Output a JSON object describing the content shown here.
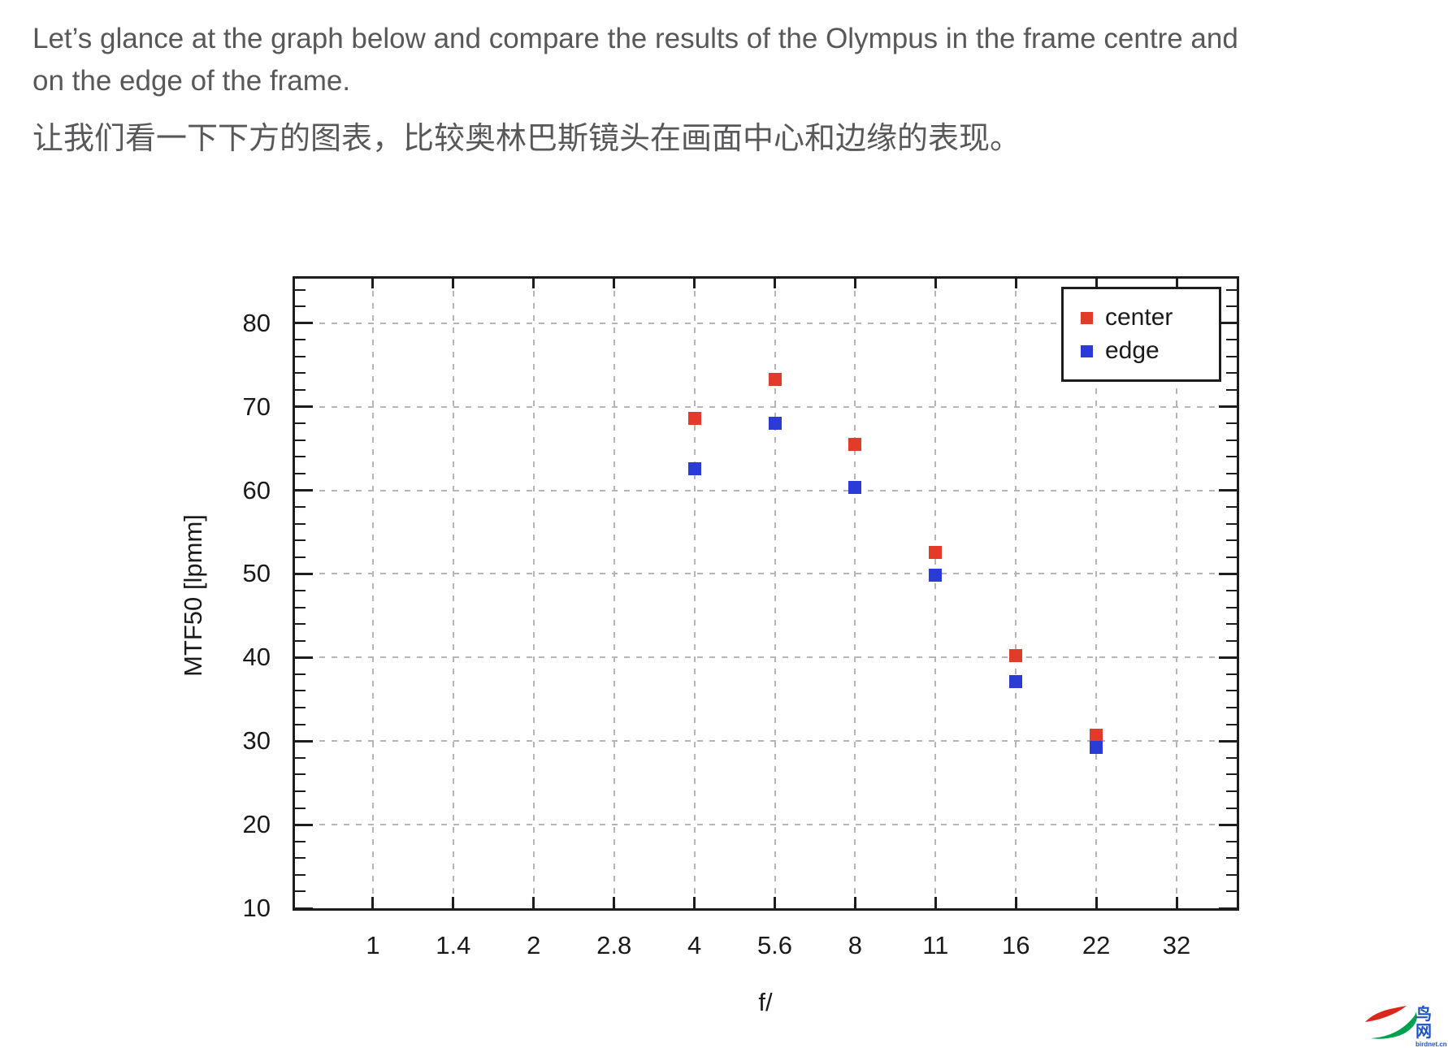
{
  "page": {
    "paragraph_en": "Let’s glance at the graph below and compare the results of the Olympus in the frame centre and on the edge of the frame.",
    "paragraph_zh": "让我们看一下下方的图表，比较奥林巴斯镜头在画面中心和边缘的表现。"
  },
  "chart_data": {
    "type": "scatter",
    "title": "",
    "xlabel": "f/",
    "ylabel": "MTF50 [lpmm]",
    "x_scale": "log2-fstops-evenly-spaced",
    "x_ticks": [
      "1",
      "1.4",
      "2",
      "2.8",
      "4",
      "5.6",
      "8",
      "11",
      "16",
      "22",
      "32"
    ],
    "y_ticks": [
      10,
      20,
      30,
      40,
      50,
      60,
      70,
      80
    ],
    "ylim": [
      10,
      85.3
    ],
    "grid": true,
    "grid_style": "dashed-gray",
    "legend_position": "top-right",
    "marker": "square",
    "series": [
      {
        "name": "center",
        "color": "#e23b2a",
        "x": [
          4,
          5.6,
          8,
          11,
          16,
          22
        ],
        "y": [
          68.6,
          73.3,
          65.5,
          52.6,
          40.2,
          30.7
        ]
      },
      {
        "name": "edge",
        "color": "#2b3bd5",
        "x": [
          4,
          5.6,
          8,
          11,
          16,
          22
        ],
        "y": [
          62.6,
          68.0,
          60.3,
          49.8,
          37.1,
          29.2
        ]
      }
    ]
  },
  "watermark": {
    "cn": "鸟网",
    "domain": "birdnet.cn",
    "red": "#d8291a",
    "green": "#00a14e",
    "blue": "#1d53c0"
  }
}
